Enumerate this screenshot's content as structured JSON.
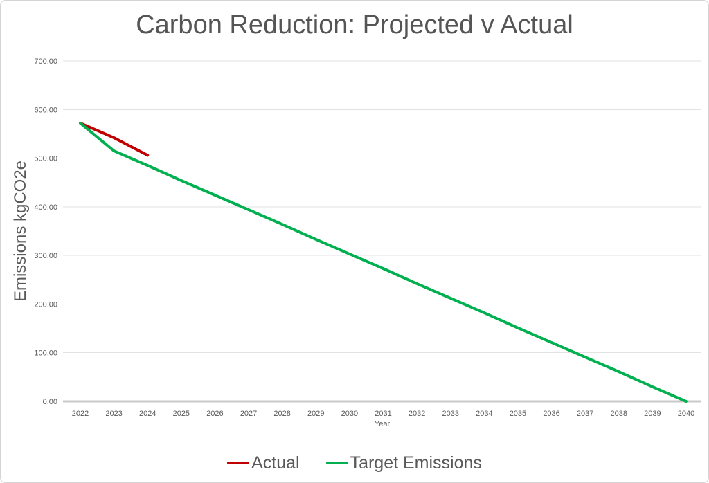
{
  "chart_data": {
    "type": "line",
    "title": "Carbon Reduction: Projected v Actual",
    "xlabel": "Year",
    "ylabel": "Emissions kgCO2e",
    "x": [
      2022,
      2023,
      2024,
      2025,
      2026,
      2027,
      2028,
      2029,
      2030,
      2031,
      2032,
      2033,
      2034,
      2035,
      2036,
      2037,
      2038,
      2039,
      2040
    ],
    "ylim": [
      0,
      700
    ],
    "ytick_labels": [
      "0.00",
      "100.00",
      "200.00",
      "300.00",
      "400.00",
      "500.00",
      "600.00",
      "700.00"
    ],
    "grid": "horizontal",
    "legend_position": "bottom",
    "series": [
      {
        "name": "Actual",
        "color": "#C00000",
        "values": [
          572,
          542,
          506
        ]
      },
      {
        "name": "Target Emissions",
        "color": "#00B050",
        "values": [
          572,
          515,
          485,
          454,
          424,
          394,
          364,
          333,
          303,
          273,
          242,
          212,
          182,
          151,
          121,
          91,
          61,
          30,
          0
        ]
      }
    ],
    "colors": {
      "gridline": "#E2E2E2",
      "axis_line": "#C9C9C9",
      "text": "#595959",
      "background": "#FFFFFF",
      "border": "#D4D4D4"
    }
  }
}
